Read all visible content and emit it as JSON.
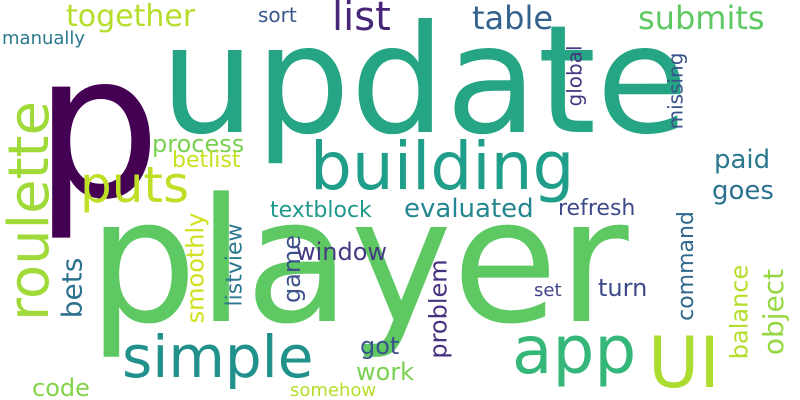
{
  "words": [
    {
      "text": "p",
      "color": "#440154",
      "rotated": false
    },
    {
      "text": "update",
      "color": "#25a584",
      "rotated": false
    },
    {
      "text": "player",
      "color": "#5ec962",
      "rotated": false
    },
    {
      "text": "building",
      "color": "#1f9e89",
      "rotated": false
    },
    {
      "text": "simple",
      "color": "#21918c",
      "rotated": false
    },
    {
      "text": "app",
      "color": "#35b779",
      "rotated": false
    },
    {
      "text": "UI",
      "color": "#addc30",
      "rotated": false
    },
    {
      "text": "roulette",
      "color": "#a0da39",
      "rotated": true
    },
    {
      "text": "puts",
      "color": "#bddf26",
      "rotated": false
    },
    {
      "text": "together",
      "color": "#b5de2b",
      "rotated": false
    },
    {
      "text": "list",
      "color": "#482677",
      "rotated": false
    },
    {
      "text": "table",
      "color": "#33638d",
      "rotated": false
    },
    {
      "text": "submits",
      "color": "#5ec962",
      "rotated": false
    },
    {
      "text": "sort",
      "color": "#39568c",
      "rotated": false
    },
    {
      "text": "manually",
      "color": "#2a788e",
      "rotated": false
    },
    {
      "text": "global",
      "color": "#453781",
      "rotated": true
    },
    {
      "text": "missing",
      "color": "#3b528b",
      "rotated": true
    },
    {
      "text": "process",
      "color": "#7ad151",
      "rotated": false
    },
    {
      "text": "betlist",
      "color": "#c8e020",
      "rotated": false
    },
    {
      "text": "paid",
      "color": "#2a788e",
      "rotated": false
    },
    {
      "text": "goes",
      "color": "#2c728e",
      "rotated": false
    },
    {
      "text": "bets",
      "color": "#2c728e",
      "rotated": true
    },
    {
      "text": "smoothly",
      "color": "#d0e11c",
      "rotated": true
    },
    {
      "text": "textblock",
      "color": "#1f988b",
      "rotated": false
    },
    {
      "text": "evaluated",
      "color": "#24868e",
      "rotated": false
    },
    {
      "text": "refresh",
      "color": "#3e4a89",
      "rotated": false
    },
    {
      "text": "command",
      "color": "#31688e",
      "rotated": true
    },
    {
      "text": "game",
      "color": "#3b528b",
      "rotated": true
    },
    {
      "text": "window",
      "color": "#443a83",
      "rotated": false
    },
    {
      "text": "listview",
      "color": "#2a788e",
      "rotated": true
    },
    {
      "text": "problem",
      "color": "#46327e",
      "rotated": true
    },
    {
      "text": "balance",
      "color": "#b5de2b",
      "rotated": true
    },
    {
      "text": "object",
      "color": "#95d840",
      "rotated": true
    },
    {
      "text": "turn",
      "color": "#3e4989",
      "rotated": false
    },
    {
      "text": "set",
      "color": "#414487",
      "rotated": false
    },
    {
      "text": "got",
      "color": "#3b528b",
      "rotated": false
    },
    {
      "text": "work",
      "color": "#7ad151",
      "rotated": false
    },
    {
      "text": "code",
      "color": "#84d44b",
      "rotated": false
    },
    {
      "text": "somehow",
      "color": "#b5de2b",
      "rotated": false
    }
  ]
}
